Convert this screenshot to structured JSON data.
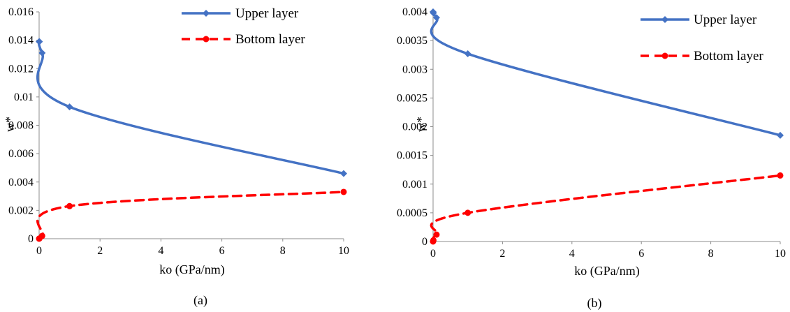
{
  "chart_data": [
    {
      "type": "line",
      "panel_label": "(a)",
      "xlabel": "ko (GPa/nm)",
      "ylabel": "w*",
      "xlim": [
        0,
        10
      ],
      "ylim": [
        0,
        0.016
      ],
      "xticks": [
        0,
        2,
        4,
        6,
        8,
        10
      ],
      "yticks": [
        0,
        0.002,
        0.004,
        0.006,
        0.008,
        0.01,
        0.012,
        0.014,
        0.016
      ],
      "ytick_labels": [
        "0",
        "0.002",
        "0.004",
        "0.006",
        "0.008",
        "0.01",
        "0.012",
        "0.014",
        "0.016"
      ],
      "grid": false,
      "legend": "top-right",
      "series": [
        {
          "name": "Upper layer",
          "color": "#4472C4",
          "style": "solid",
          "marker": "diamond",
          "x": [
            0,
            0.01,
            0.1,
            1,
            10
          ],
          "y": [
            0.0139,
            0.0139,
            0.0131,
            0.0093,
            0.0046
          ]
        },
        {
          "name": "Bottom layer",
          "color": "#FF0000",
          "style": "dashed",
          "marker": "circle",
          "x": [
            0,
            0.01,
            0.1,
            1,
            10
          ],
          "y": [
            0,
            2e-05,
            0.0002,
            0.0023,
            0.0033
          ]
        }
      ]
    },
    {
      "type": "line",
      "panel_label": "(b)",
      "xlabel": "ko (GPa/nm)",
      "ylabel": "w*",
      "xlim": [
        0,
        10
      ],
      "ylim": [
        0,
        0.004
      ],
      "xticks": [
        0,
        2,
        4,
        6,
        8,
        10
      ],
      "yticks": [
        0,
        0.0005,
        0.001,
        0.0015,
        0.002,
        0.0025,
        0.003,
        0.0035,
        0.004
      ],
      "ytick_labels": [
        "0",
        "0.0005",
        "0.001",
        "0.0015",
        "0.002",
        "0.0025",
        "0.003",
        "0.0035",
        "0.004"
      ],
      "grid": false,
      "legend": "top-right",
      "series": [
        {
          "name": "Upper layer",
          "color": "#4472C4",
          "style": "solid",
          "marker": "diamond",
          "x": [
            0,
            0.01,
            0.1,
            1,
            10
          ],
          "y": [
            0.004,
            0.00398,
            0.0039,
            0.00327,
            0.00185
          ]
        },
        {
          "name": "Bottom layer",
          "color": "#FF0000",
          "style": "dashed",
          "marker": "circle",
          "x": [
            0,
            0.01,
            0.1,
            1,
            10
          ],
          "y": [
            0,
            2e-05,
            0.00012,
            0.0005,
            0.00115
          ]
        }
      ]
    }
  ]
}
